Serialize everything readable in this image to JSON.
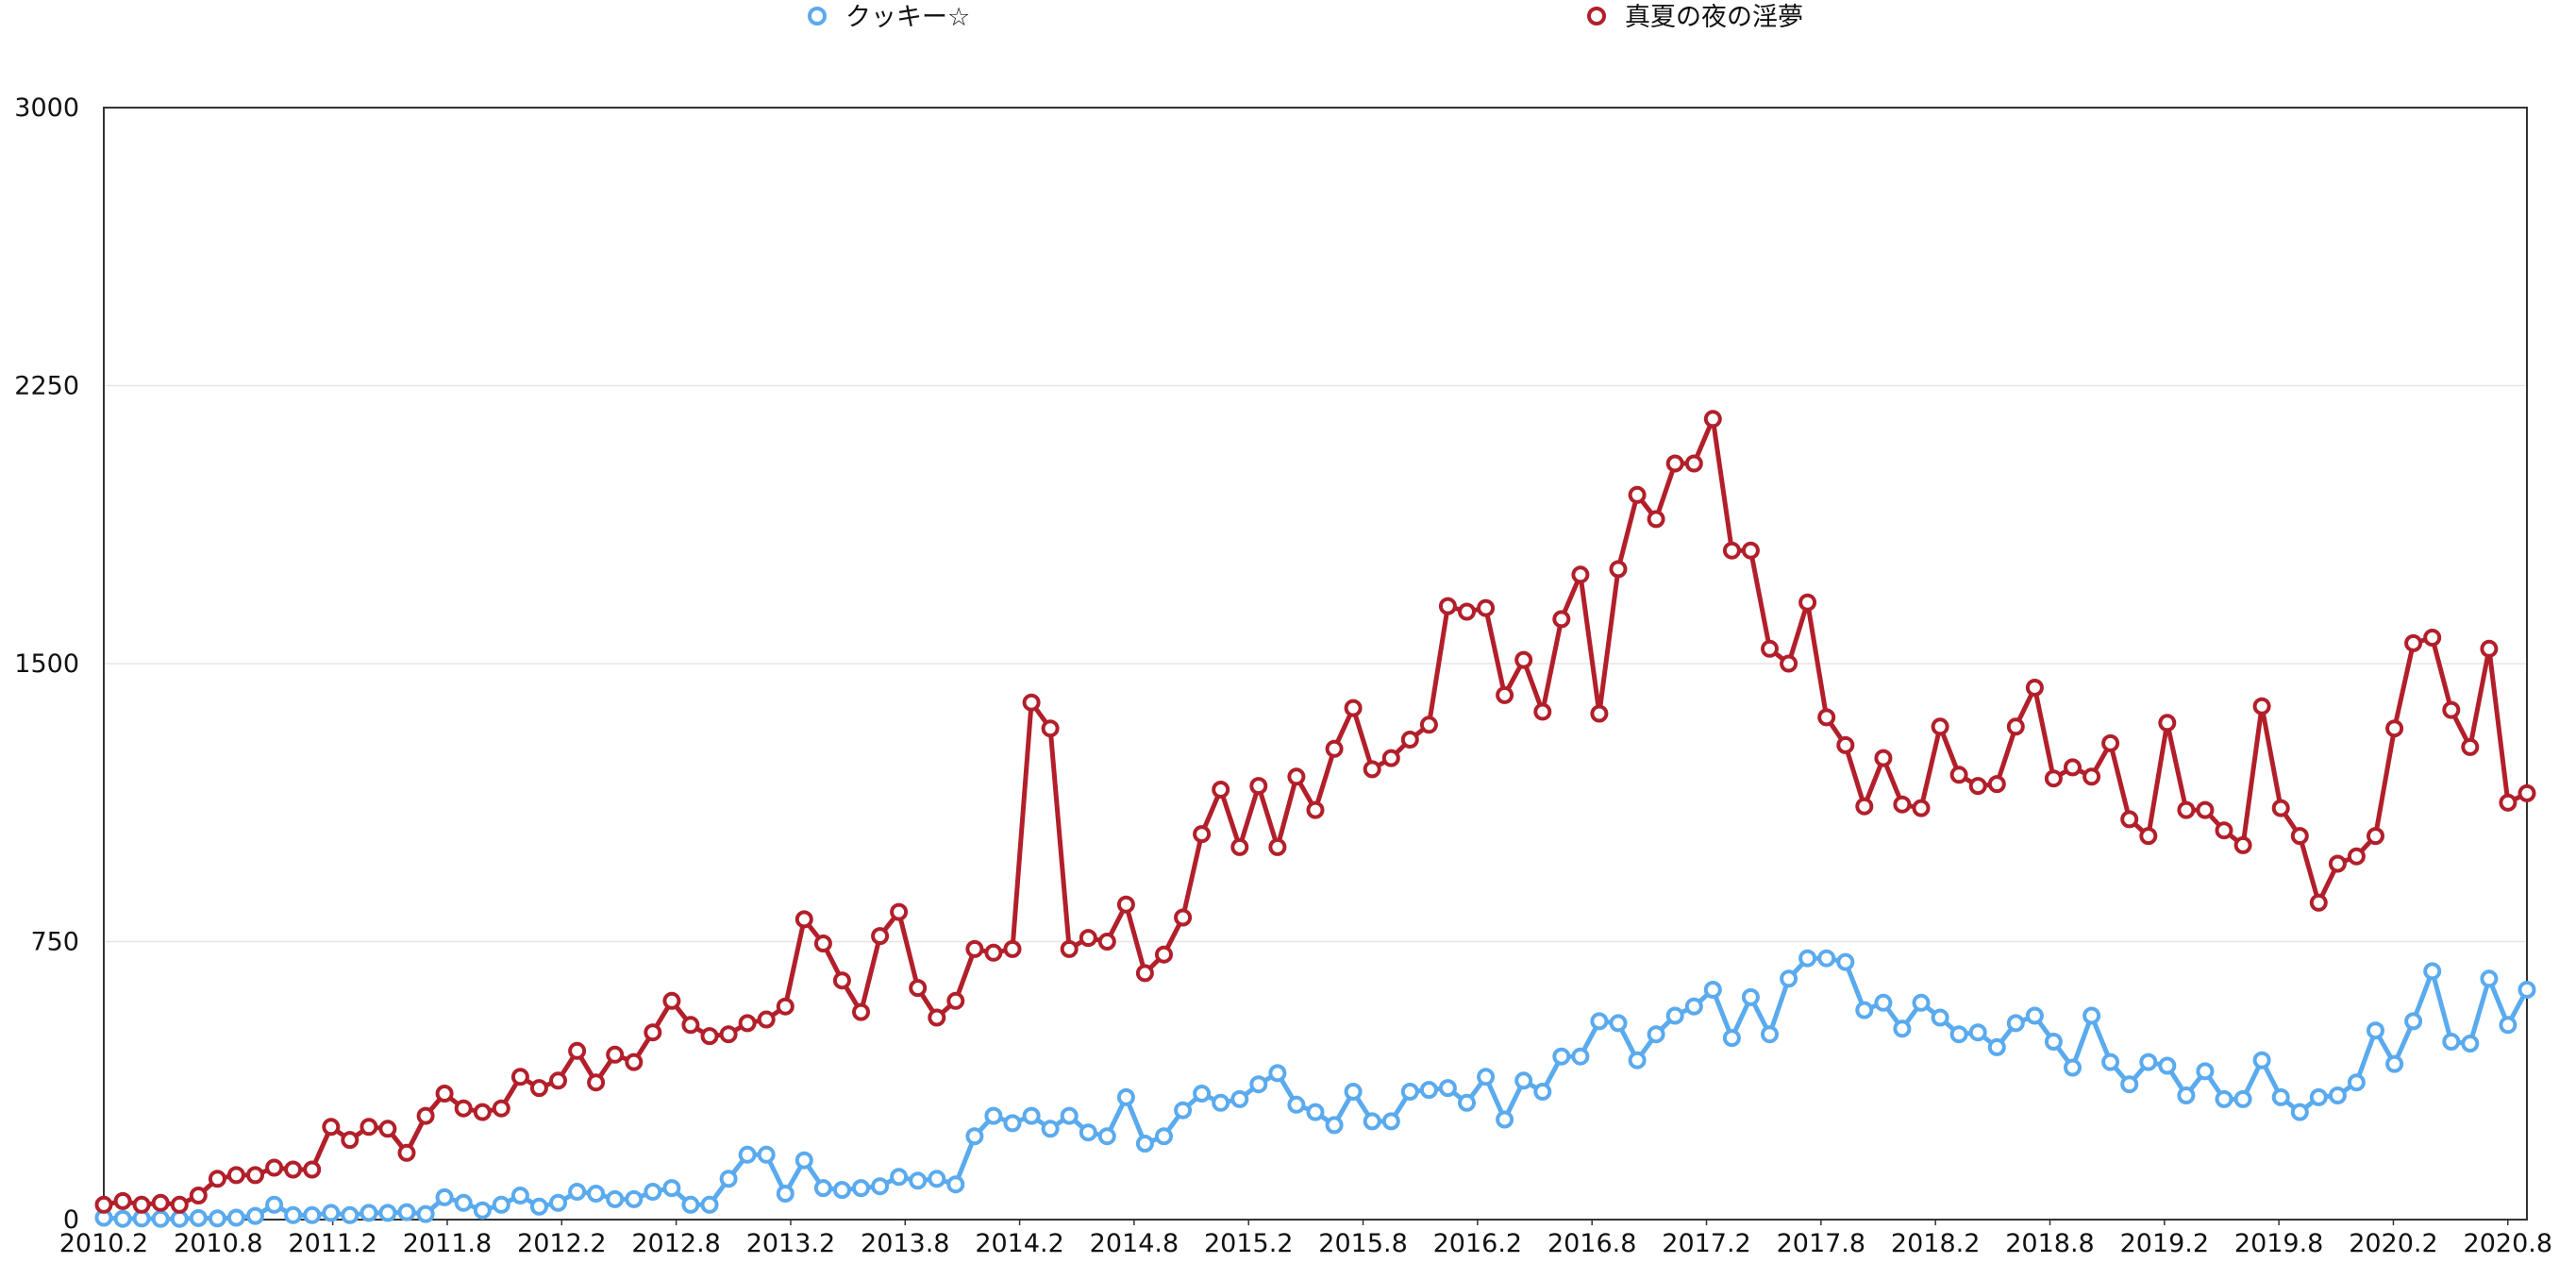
{
  "chart_data": {
    "type": "line",
    "title": "",
    "xlabel": "",
    "ylabel": "",
    "ylim": [
      0,
      3000
    ],
    "yticks": [
      "0",
      "750",
      "1500",
      "2250",
      "3000"
    ],
    "xtick_labels": [
      "2010.2",
      "2010.8",
      "2011.2",
      "2011.8",
      "2012.2",
      "2012.8",
      "2013.2",
      "2013.8",
      "2014.2",
      "2014.8",
      "2015.2",
      "2015.8",
      "2016.2",
      "2016.8",
      "2017.2",
      "2017.8",
      "2018.2",
      "2018.8",
      "2019.2",
      "2019.8",
      "2020.2",
      "2020.8"
    ],
    "x_start": "2010.2",
    "x_end": "2020.9",
    "grid": true,
    "legend_position": "top",
    "series": [
      {
        "name": "クッキー☆",
        "color": "#5aaaee",
        "values": [
          5,
          2,
          3,
          2,
          2,
          4,
          3,
          5,
          10,
          40,
          12,
          12,
          18,
          12,
          18,
          18,
          20,
          15,
          60,
          45,
          25,
          40,
          65,
          35,
          45,
          75,
          70,
          55,
          55,
          75,
          85,
          40,
          40,
          110,
          175,
          175,
          70,
          160,
          85,
          80,
          85,
          90,
          115,
          105,
          110,
          95,
          225,
          280,
          260,
          280,
          245,
          280,
          235,
          225,
          330,
          205,
          225,
          295,
          340,
          315,
          325,
          365,
          395,
          310,
          290,
          255,
          345,
          265,
          265,
          345,
          350,
          355,
          315,
          385,
          270,
          375,
          345,
          440,
          440,
          535,
          530,
          430,
          500,
          550,
          575,
          620,
          490,
          600,
          500,
          650,
          705,
          705,
          695,
          565,
          585,
          515,
          585,
          545,
          500,
          505,
          465,
          530,
          550,
          480,
          410,
          550,
          425,
          365,
          425,
          415,
          335,
          400,
          325,
          325,
          430,
          330,
          290,
          330,
          335,
          370,
          510,
          420,
          535,
          670,
          480,
          475,
          650,
          525,
          620
        ]
      },
      {
        "name": "真夏の夜の淫夢",
        "color": "#b21f2a",
        "values": [
          40,
          50,
          40,
          45,
          40,
          65,
          110,
          120,
          120,
          140,
          135,
          135,
          250,
          215,
          250,
          245,
          180,
          280,
          340,
          300,
          290,
          300,
          385,
          355,
          375,
          455,
          370,
          445,
          425,
          505,
          590,
          525,
          495,
          500,
          530,
          540,
          575,
          810,
          745,
          645,
          560,
          765,
          830,
          625,
          545,
          590,
          730,
          720,
          730,
          1395,
          1325,
          730,
          760,
          750,
          850,
          665,
          715,
          815,
          1040,
          1160,
          1005,
          1170,
          1005,
          1195,
          1105,
          1270,
          1380,
          1215,
          1245,
          1295,
          1335,
          1655,
          1640,
          1650,
          1415,
          1510,
          1370,
          1620,
          1740,
          1365,
          1755,
          1955,
          1890,
          2040,
          2040,
          2160,
          1805,
          1805,
          1540,
          1500,
          1665,
          1355,
          1280,
          1115,
          1245,
          1120,
          1110,
          1330,
          1200,
          1170,
          1175,
          1330,
          1435,
          1190,
          1220,
          1195,
          1285,
          1080,
          1035,
          1340,
          1105,
          1105,
          1050,
          1010,
          1385,
          1110,
          1035,
          855,
          960,
          980,
          1035,
          1325,
          1555,
          1570,
          1375,
          1275,
          1540,
          1125,
          1150
        ]
      }
    ]
  }
}
